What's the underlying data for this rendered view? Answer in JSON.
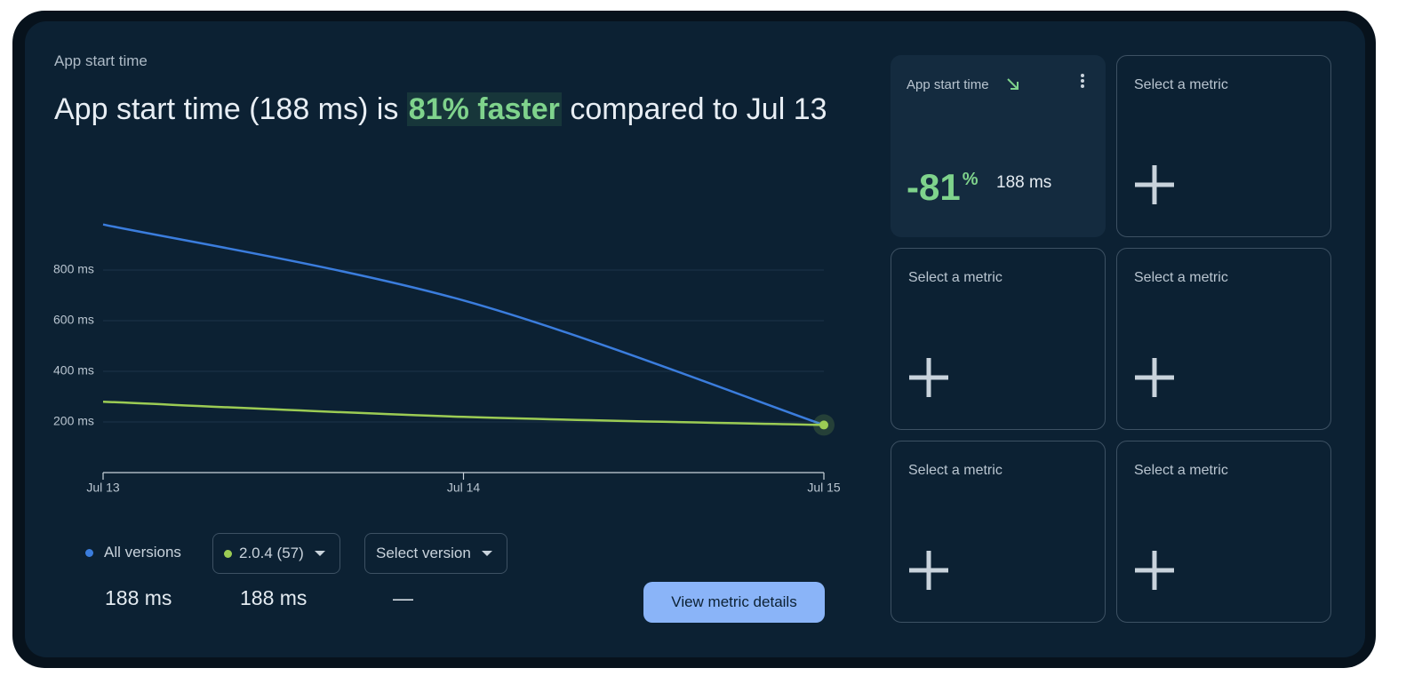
{
  "panel_title": "App start time",
  "headline": {
    "prefix": "App start time (188 ms) is",
    "highlight": "81% faster",
    "suffix": "compared to Jul 13"
  },
  "chart_data": {
    "type": "line",
    "categories": [
      "Jul 13",
      "Jul 14",
      "Jul 15"
    ],
    "series": [
      {
        "name": "All versions",
        "color": "#3b7ddd",
        "values": [
          980,
          680,
          188
        ]
      },
      {
        "name": "2.0.4 (57)",
        "color": "#9ccc54",
        "values": [
          280,
          220,
          188
        ]
      }
    ],
    "ylim": [
      0,
      1000
    ],
    "yticks": [
      {
        "value": 200,
        "label": "200 ms"
      },
      {
        "value": 400,
        "label": "400 ms"
      },
      {
        "value": 600,
        "label": "600 ms"
      },
      {
        "value": 800,
        "label": "800 ms"
      }
    ],
    "grid": true
  },
  "legend": {
    "values": [
      "188 ms",
      "188 ms",
      "—"
    ],
    "select_label": "Select version"
  },
  "button": "View metric details",
  "cards": [
    {
      "title": "App start time",
      "change": "-81",
      "change_unit": "%",
      "value": "188 ms"
    },
    {
      "title": "Select a metric"
    },
    {
      "title": "Select a metric"
    },
    {
      "title": "Select a metric"
    },
    {
      "title": "Select a metric"
    },
    {
      "title": "Select a metric"
    }
  ]
}
